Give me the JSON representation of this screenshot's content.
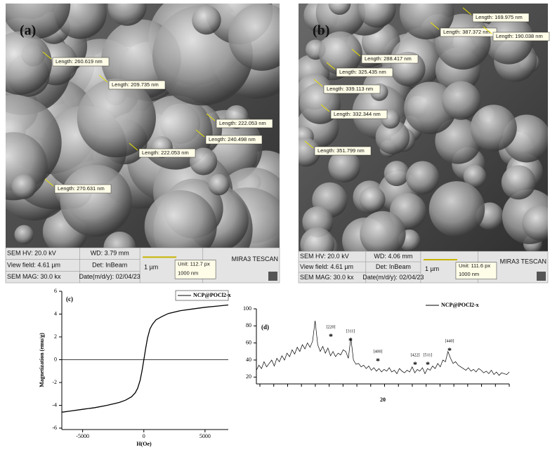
{
  "sem_images": [
    {
      "label": "(a)",
      "measurements": [
        "Length: 260.619 nm",
        "Length: 209.735 nm",
        "Length: 222.053 nm",
        "Length: 240.498 nm",
        "Length: 222.053 nm",
        "Length: 270.631 nm"
      ],
      "info": {
        "hv": "SEM HV: 20.0 kV",
        "wd": "WD: 3.79 mm",
        "brand": "MIRA3 TESCAN",
        "view_field": "View field: 4.61 µm",
        "det": "Det: InBeam",
        "scale": "1 µm",
        "unit": "Unit: 112.7 px",
        "unit_nm": "1000 nm",
        "mag": "SEM MAG: 30.0 kx",
        "date": "Date(m/d/y): 02/04/23"
      }
    },
    {
      "label": "(b)",
      "measurements": [
        "Length: 169.975 nm",
        "Length: 387.372 nm",
        "Length: 190.038 nm",
        "Length: 288.417 nm",
        "Length: 325.435 nm",
        "Length: 339.113 nm",
        "Length: 332.344 nm",
        "Length: 351.799 nm"
      ],
      "info": {
        "hv": "SEM HV: 20.0 kV",
        "wd": "WD: 4.06 mm",
        "brand": "MIRA3 TESCAN",
        "view_field": "View field: 4.61 µm",
        "det": "Det: InBeam",
        "scale": "1 µm",
        "unit": "Unit: 111.6 px",
        "unit_nm": "1000 nm",
        "mag": "SEM MAG: 30.0 kx",
        "date": "Date(m/d/y): 02/04/23"
      }
    }
  ],
  "chart_data": [
    {
      "type": "line",
      "panel_label": "(c)",
      "x_label": "H(Oe)",
      "y_label": "Magnetization (emu/g)",
      "xlim": [
        -6700,
        6900
      ],
      "ylim": [
        -6,
        6
      ],
      "xticks": [
        -5000,
        0,
        5000
      ],
      "yticks": [
        -6,
        -4,
        -2,
        0,
        2,
        4,
        6
      ],
      "x": [
        -6700,
        -6000,
        -5000,
        -4000,
        -3000,
        -2000,
        -1500,
        -1000,
        -700,
        -500,
        -300,
        -150,
        0,
        150,
        300,
        500,
        700,
        1000,
        1500,
        2000,
        3000,
        4000,
        5000,
        6000,
        6900
      ],
      "series": [
        {
          "name": "NCP@POCl2-x",
          "color": "#000000",
          "values": [
            -4.6,
            -4.5,
            -4.35,
            -4.2,
            -4.0,
            -3.75,
            -3.55,
            -3.25,
            -2.9,
            -2.5,
            -1.8,
            -1.0,
            0.0,
            1.0,
            1.9,
            2.7,
            3.1,
            3.5,
            3.8,
            4.05,
            4.3,
            4.45,
            4.6,
            4.7,
            4.8
          ]
        }
      ]
    },
    {
      "type": "line",
      "panel_label": "(d)",
      "x_label": "20",
      "ylim": [
        12,
        100
      ],
      "yticks": [
        20,
        40,
        60,
        80,
        100
      ],
      "annotations": [
        {
          "label": "[220]",
          "marker": "*"
        },
        {
          "label": "[311]",
          "marker": "*"
        },
        {
          "label": "[400]",
          "marker": "*"
        },
        {
          "label": "[422]",
          "marker": "*"
        },
        {
          "label": "[511]",
          "marker": "*"
        },
        {
          "label": "[440]",
          "marker": "*"
        }
      ],
      "series": [
        {
          "name": "NCP@POCl2-x",
          "color": "#000000",
          "values": [
            28,
            34,
            30,
            38,
            32,
            36,
            40,
            33,
            42,
            38,
            45,
            40,
            48,
            44,
            52,
            47,
            55,
            50,
            58,
            53,
            60,
            55,
            62,
            86,
            58,
            50,
            56,
            48,
            54,
            45,
            50,
            44,
            48,
            46,
            52,
            50,
            42,
            66,
            40,
            35,
            36,
            32,
            34,
            30,
            33,
            28,
            31,
            27,
            30,
            26,
            29,
            27,
            31,
            26,
            28,
            24,
            30,
            27,
            25,
            28,
            26,
            32,
            25,
            29,
            27,
            31,
            24,
            30,
            28,
            33,
            30,
            36,
            32,
            40,
            38,
            50,
            42,
            36,
            38,
            34,
            32,
            30,
            28,
            31,
            27,
            29,
            26,
            30,
            28,
            25,
            27,
            24,
            28,
            23,
            26,
            22,
            25,
            24,
            23,
            26
          ]
        }
      ]
    }
  ]
}
